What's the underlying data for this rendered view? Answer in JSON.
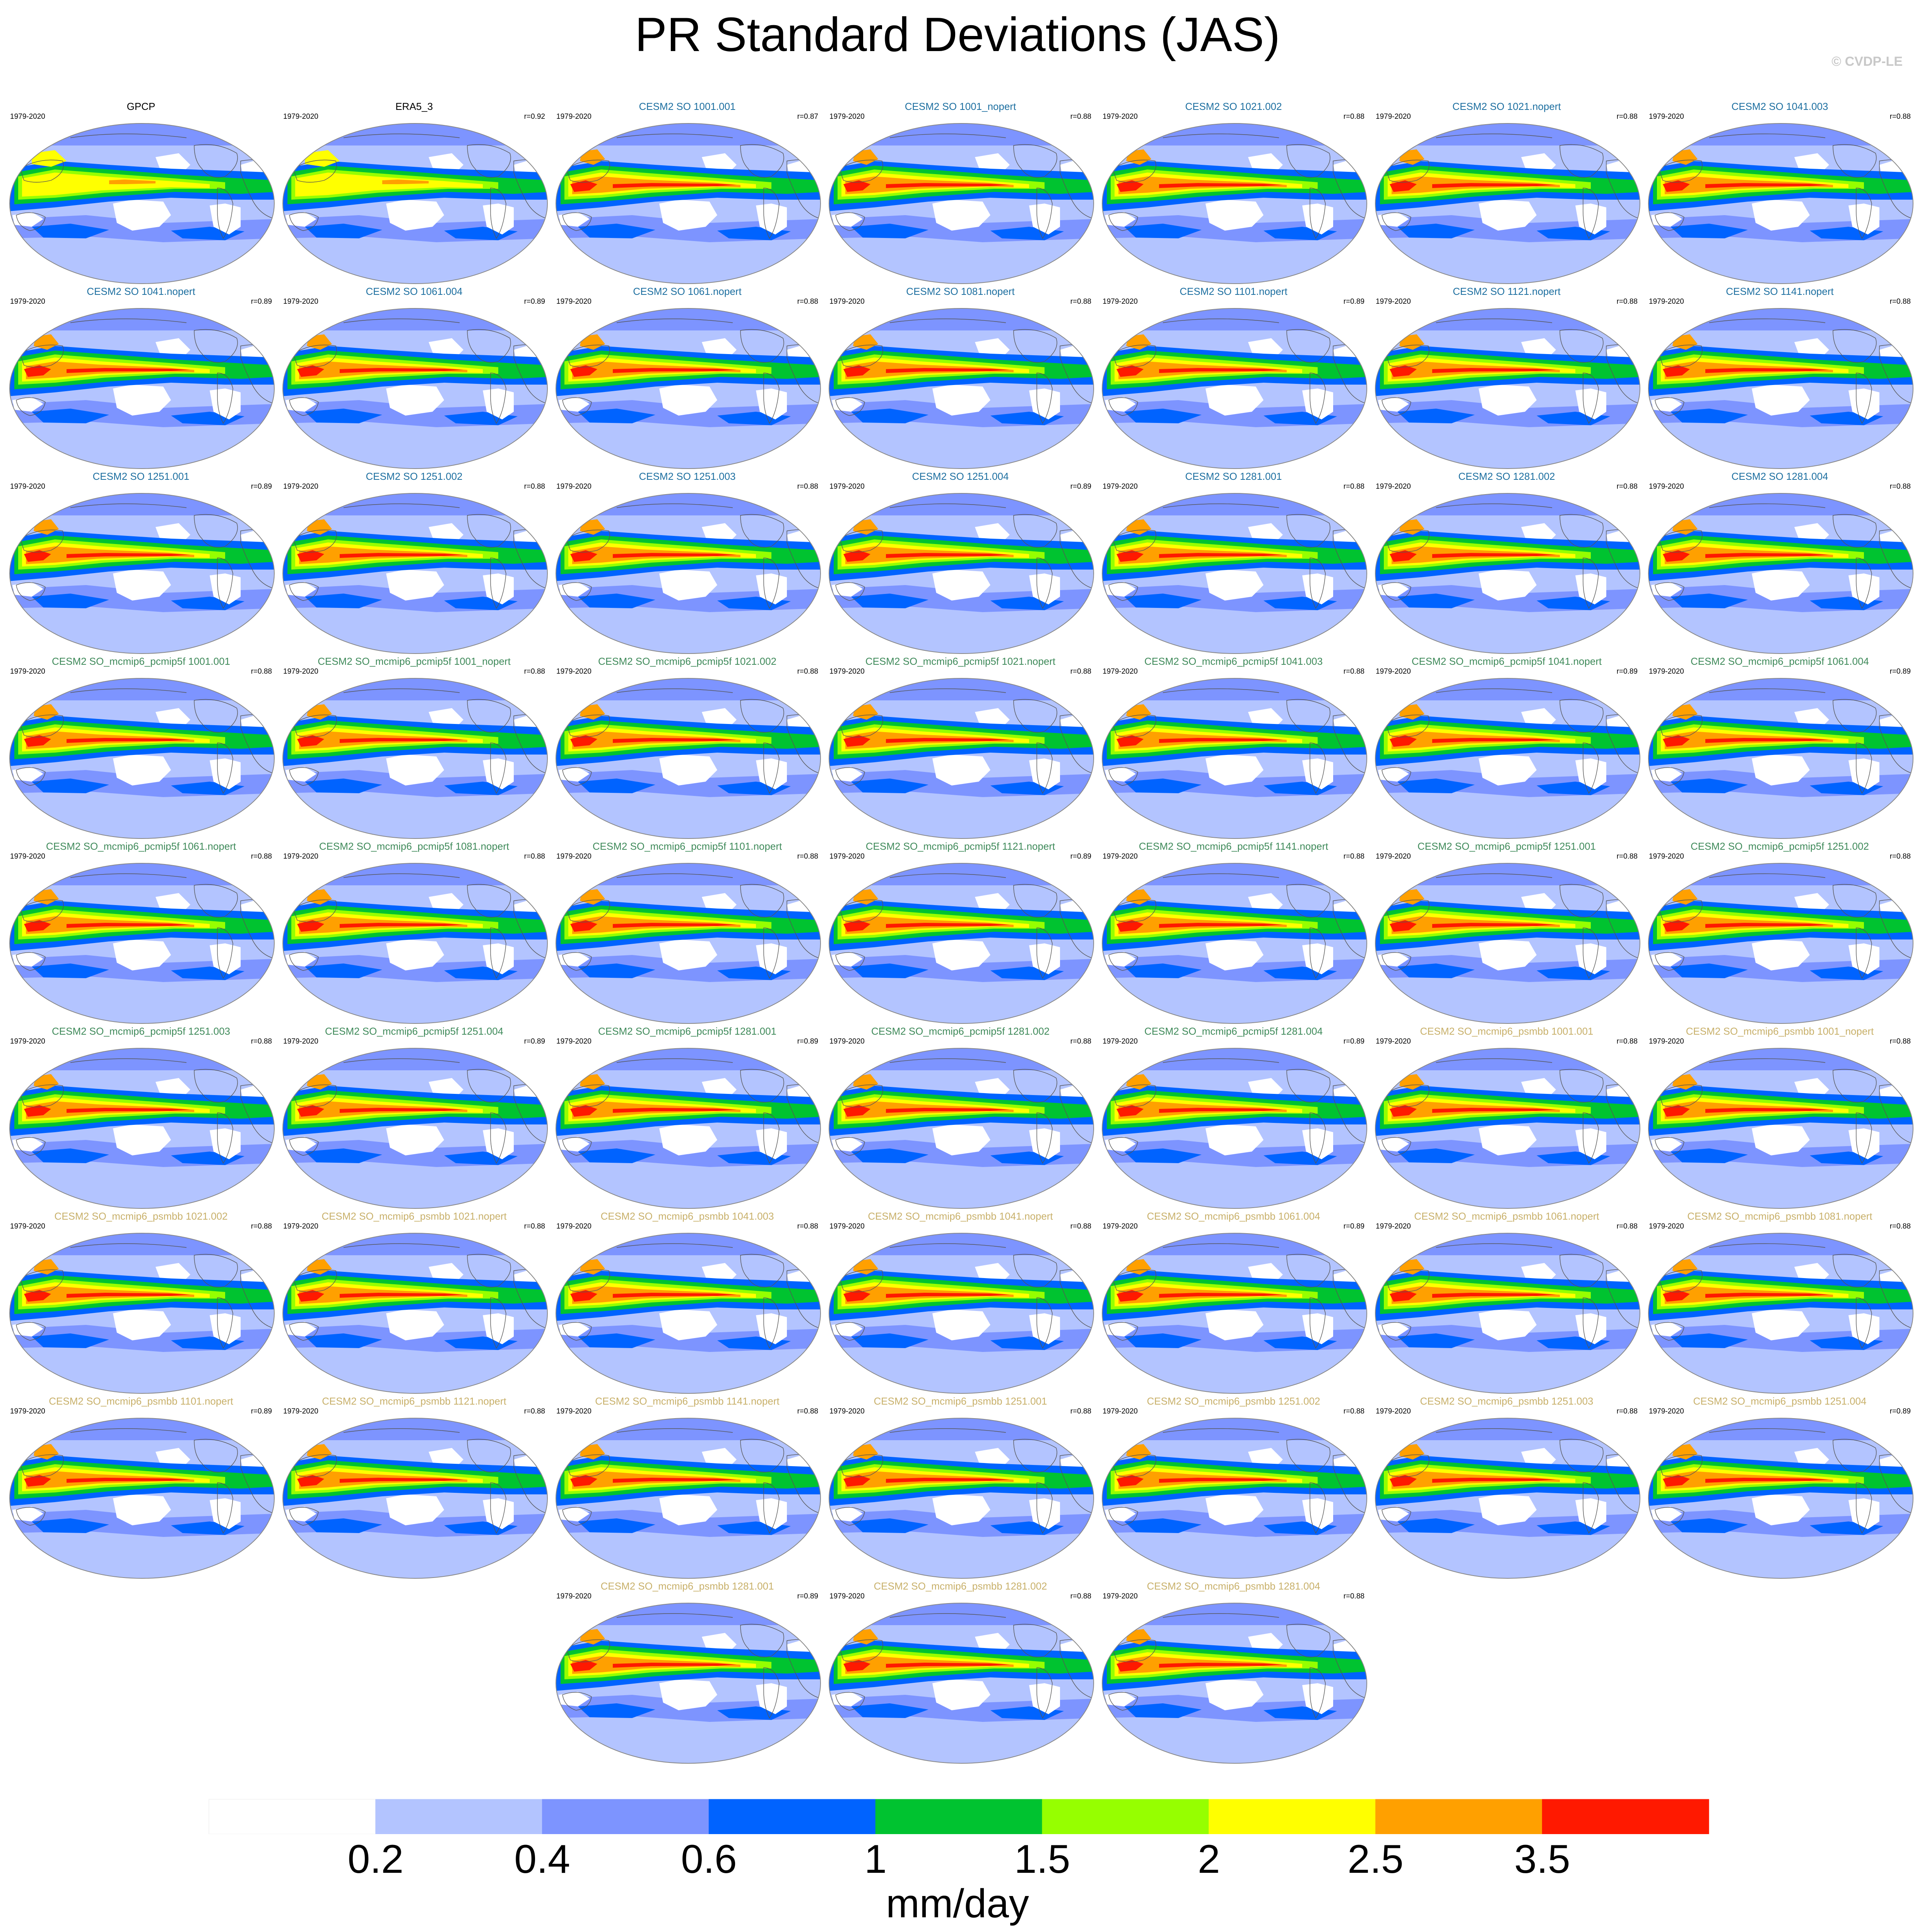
{
  "title": "PR Standard Deviations (JAS)",
  "copyright": "© CVDP-LE",
  "colorbar": {
    "colors": [
      "#ffffff",
      "#b3c4ff",
      "#7d94ff",
      "#0063ff",
      "#00c330",
      "#96ff00",
      "#ffff00",
      "#ffa000",
      "#ff1900"
    ],
    "labels": [
      "0.2",
      "0.4",
      "0.6",
      "1",
      "1.5",
      "2",
      "2.5",
      "3.5"
    ],
    "units": "mm/day"
  },
  "panels": [
    {
      "title": "GPCP",
      "years": "1979-2020",
      "corr": "",
      "color": "#000000",
      "variant": "obs"
    },
    {
      "title": "ERA5_3",
      "years": "1979-2020",
      "corr": "r=0.92",
      "color": "#000000",
      "variant": "obs"
    },
    {
      "title": "CESM2 SO 1001.001",
      "years": "1979-2020",
      "corr": "r=0.87",
      "color": "#1d6fa0",
      "variant": "model"
    },
    {
      "title": "CESM2 SO 1001_nopert",
      "years": "1979-2020",
      "corr": "r=0.88",
      "color": "#1d6fa0",
      "variant": "model"
    },
    {
      "title": "CESM2 SO 1021.002",
      "years": "1979-2020",
      "corr": "r=0.88",
      "color": "#1d6fa0",
      "variant": "model"
    },
    {
      "title": "CESM2 SO 1021.nopert",
      "years": "1979-2020",
      "corr": "r=0.88",
      "color": "#1d6fa0",
      "variant": "model"
    },
    {
      "title": "CESM2 SO 1041.003",
      "years": "1979-2020",
      "corr": "r=0.88",
      "color": "#1d6fa0",
      "variant": "model"
    },
    {
      "title": "CESM2 SO 1041.nopert",
      "years": "1979-2020",
      "corr": "r=0.89",
      "color": "#1d6fa0",
      "variant": "model"
    },
    {
      "title": "CESM2 SO 1061.004",
      "years": "1979-2020",
      "corr": "r=0.89",
      "color": "#1d6fa0",
      "variant": "model"
    },
    {
      "title": "CESM2 SO 1061.nopert",
      "years": "1979-2020",
      "corr": "r=0.88",
      "color": "#1d6fa0",
      "variant": "model"
    },
    {
      "title": "CESM2 SO 1081.nopert",
      "years": "1979-2020",
      "corr": "r=0.88",
      "color": "#1d6fa0",
      "variant": "model"
    },
    {
      "title": "CESM2 SO 1101.nopert",
      "years": "1979-2020",
      "corr": "r=0.89",
      "color": "#1d6fa0",
      "variant": "model"
    },
    {
      "title": "CESM2 SO 1121.nopert",
      "years": "1979-2020",
      "corr": "r=0.88",
      "color": "#1d6fa0",
      "variant": "model"
    },
    {
      "title": "CESM2 SO 1141.nopert",
      "years": "1979-2020",
      "corr": "r=0.88",
      "color": "#1d6fa0",
      "variant": "model"
    },
    {
      "title": "CESM2 SO 1251.001",
      "years": "1979-2020",
      "corr": "r=0.89",
      "color": "#1d6fa0",
      "variant": "model"
    },
    {
      "title": "CESM2 SO 1251.002",
      "years": "1979-2020",
      "corr": "r=0.88",
      "color": "#1d6fa0",
      "variant": "model"
    },
    {
      "title": "CESM2 SO 1251.003",
      "years": "1979-2020",
      "corr": "r=0.88",
      "color": "#1d6fa0",
      "variant": "model"
    },
    {
      "title": "CESM2 SO 1251.004",
      "years": "1979-2020",
      "corr": "r=0.89",
      "color": "#1d6fa0",
      "variant": "model"
    },
    {
      "title": "CESM2 SO 1281.001",
      "years": "1979-2020",
      "corr": "r=0.88",
      "color": "#1d6fa0",
      "variant": "model"
    },
    {
      "title": "CESM2 SO 1281.002",
      "years": "1979-2020",
      "corr": "r=0.88",
      "color": "#1d6fa0",
      "variant": "model"
    },
    {
      "title": "CESM2 SO 1281.004",
      "years": "1979-2020",
      "corr": "r=0.88",
      "color": "#1d6fa0",
      "variant": "model"
    },
    {
      "title": "CESM2 SO_mcmip6_pcmip5f 1001.001",
      "years": "1979-2020",
      "corr": "r=0.88",
      "color": "#3f8a5a",
      "variant": "model"
    },
    {
      "title": "CESM2 SO_mcmip6_pcmip5f 1001_nopert",
      "years": "1979-2020",
      "corr": "r=0.88",
      "color": "#3f8a5a",
      "variant": "model"
    },
    {
      "title": "CESM2 SO_mcmip6_pcmip5f 1021.002",
      "years": "1979-2020",
      "corr": "r=0.88",
      "color": "#3f8a5a",
      "variant": "model"
    },
    {
      "title": "CESM2 SO_mcmip6_pcmip5f 1021.nopert",
      "years": "1979-2020",
      "corr": "r=0.88",
      "color": "#3f8a5a",
      "variant": "model"
    },
    {
      "title": "CESM2 SO_mcmip6_pcmip5f 1041.003",
      "years": "1979-2020",
      "corr": "r=0.88",
      "color": "#3f8a5a",
      "variant": "model"
    },
    {
      "title": "CESM2 SO_mcmip6_pcmip5f 1041.nopert",
      "years": "1979-2020",
      "corr": "r=0.89",
      "color": "#3f8a5a",
      "variant": "model"
    },
    {
      "title": "CESM2 SO_mcmip6_pcmip5f 1061.004",
      "years": "1979-2020",
      "corr": "r=0.89",
      "color": "#3f8a5a",
      "variant": "model"
    },
    {
      "title": "CESM2 SO_mcmip6_pcmip5f 1061.nopert",
      "years": "1979-2020",
      "corr": "r=0.88",
      "color": "#3f8a5a",
      "variant": "model"
    },
    {
      "title": "CESM2 SO_mcmip6_pcmip5f 1081.nopert",
      "years": "1979-2020",
      "corr": "r=0.88",
      "color": "#3f8a5a",
      "variant": "model"
    },
    {
      "title": "CESM2 SO_mcmip6_pcmip5f 1101.nopert",
      "years": "1979-2020",
      "corr": "r=0.88",
      "color": "#3f8a5a",
      "variant": "model"
    },
    {
      "title": "CESM2 SO_mcmip6_pcmip5f 1121.nopert",
      "years": "1979-2020",
      "corr": "r=0.89",
      "color": "#3f8a5a",
      "variant": "model"
    },
    {
      "title": "CESM2 SO_mcmip6_pcmip5f 1141.nopert",
      "years": "1979-2020",
      "corr": "r=0.88",
      "color": "#3f8a5a",
      "variant": "model"
    },
    {
      "title": "CESM2 SO_mcmip6_pcmip5f 1251.001",
      "years": "1979-2020",
      "corr": "r=0.88",
      "color": "#3f8a5a",
      "variant": "model"
    },
    {
      "title": "CESM2 SO_mcmip6_pcmip5f 1251.002",
      "years": "1979-2020",
      "corr": "r=0.88",
      "color": "#3f8a5a",
      "variant": "model"
    },
    {
      "title": "CESM2 SO_mcmip6_pcmip5f 1251.003",
      "years": "1979-2020",
      "corr": "r=0.88",
      "color": "#3f8a5a",
      "variant": "model"
    },
    {
      "title": "CESM2 SO_mcmip6_pcmip5f 1251.004",
      "years": "1979-2020",
      "corr": "r=0.89",
      "color": "#3f8a5a",
      "variant": "model"
    },
    {
      "title": "CESM2 SO_mcmip6_pcmip5f 1281.001",
      "years": "1979-2020",
      "corr": "r=0.89",
      "color": "#3f8a5a",
      "variant": "model"
    },
    {
      "title": "CESM2 SO_mcmip6_pcmip5f 1281.002",
      "years": "1979-2020",
      "corr": "r=0.88",
      "color": "#3f8a5a",
      "variant": "model"
    },
    {
      "title": "CESM2 SO_mcmip6_pcmip5f 1281.004",
      "years": "1979-2020",
      "corr": "r=0.89",
      "color": "#3f8a5a",
      "variant": "model"
    },
    {
      "title": "CESM2 SO_mcmip6_psmbb 1001.001",
      "years": "1979-2020",
      "corr": "r=0.88",
      "color": "#c8b06a",
      "variant": "model"
    },
    {
      "title": "CESM2 SO_mcmip6_psmbb 1001_nopert",
      "years": "1979-2020",
      "corr": "r=0.88",
      "color": "#c8b06a",
      "variant": "model"
    },
    {
      "title": "CESM2 SO_mcmip6_psmbb 1021.002",
      "years": "1979-2020",
      "corr": "r=0.88",
      "color": "#c8b06a",
      "variant": "model"
    },
    {
      "title": "CESM2 SO_mcmip6_psmbb 1021.nopert",
      "years": "1979-2020",
      "corr": "r=0.88",
      "color": "#c8b06a",
      "variant": "model"
    },
    {
      "title": "CESM2 SO_mcmip6_psmbb 1041.003",
      "years": "1979-2020",
      "corr": "r=0.88",
      "color": "#c8b06a",
      "variant": "model"
    },
    {
      "title": "CESM2 SO_mcmip6_psmbb 1041.nopert",
      "years": "1979-2020",
      "corr": "r=0.88",
      "color": "#c8b06a",
      "variant": "model"
    },
    {
      "title": "CESM2 SO_mcmip6_psmbb 1061.004",
      "years": "1979-2020",
      "corr": "r=0.89",
      "color": "#c8b06a",
      "variant": "model"
    },
    {
      "title": "CESM2 SO_mcmip6_psmbb 1061.nopert",
      "years": "1979-2020",
      "corr": "r=0.88",
      "color": "#c8b06a",
      "variant": "model"
    },
    {
      "title": "CESM2 SO_mcmip6_psmbb 1081.nopert",
      "years": "1979-2020",
      "corr": "r=0.88",
      "color": "#c8b06a",
      "variant": "model"
    },
    {
      "title": "CESM2 SO_mcmip6_psmbb 1101.nopert",
      "years": "1979-2020",
      "corr": "r=0.89",
      "color": "#c8b06a",
      "variant": "model"
    },
    {
      "title": "CESM2 SO_mcmip6_psmbb 1121.nopert",
      "years": "1979-2020",
      "corr": "r=0.88",
      "color": "#c8b06a",
      "variant": "model"
    },
    {
      "title": "CESM2 SO_mcmip6_psmbb 1141.nopert",
      "years": "1979-2020",
      "corr": "r=0.88",
      "color": "#c8b06a",
      "variant": "model"
    },
    {
      "title": "CESM2 SO_mcmip6_psmbb 1251.001",
      "years": "1979-2020",
      "corr": "r=0.88",
      "color": "#c8b06a",
      "variant": "model"
    },
    {
      "title": "CESM2 SO_mcmip6_psmbb 1251.002",
      "years": "1979-2020",
      "corr": "r=0.88",
      "color": "#c8b06a",
      "variant": "model"
    },
    {
      "title": "CESM2 SO_mcmip6_psmbb 1251.003",
      "years": "1979-2020",
      "corr": "r=0.88",
      "color": "#c8b06a",
      "variant": "model"
    },
    {
      "title": "CESM2 SO_mcmip6_psmbb 1251.004",
      "years": "1979-2020",
      "corr": "r=0.89",
      "color": "#c8b06a",
      "variant": "model"
    },
    {
      "title": "CESM2 SO_mcmip6_psmbb 1281.001",
      "years": "1979-2020",
      "corr": "r=0.89",
      "color": "#c8b06a",
      "variant": "model"
    },
    {
      "title": "CESM2 SO_mcmip6_psmbb 1281.002",
      "years": "1979-2020",
      "corr": "r=0.88",
      "color": "#c8b06a",
      "variant": "model"
    },
    {
      "title": "CESM2 SO_mcmip6_psmbb 1281.004",
      "years": "1979-2020",
      "corr": "r=0.88",
      "color": "#c8b06a",
      "variant": "model"
    }
  ]
}
